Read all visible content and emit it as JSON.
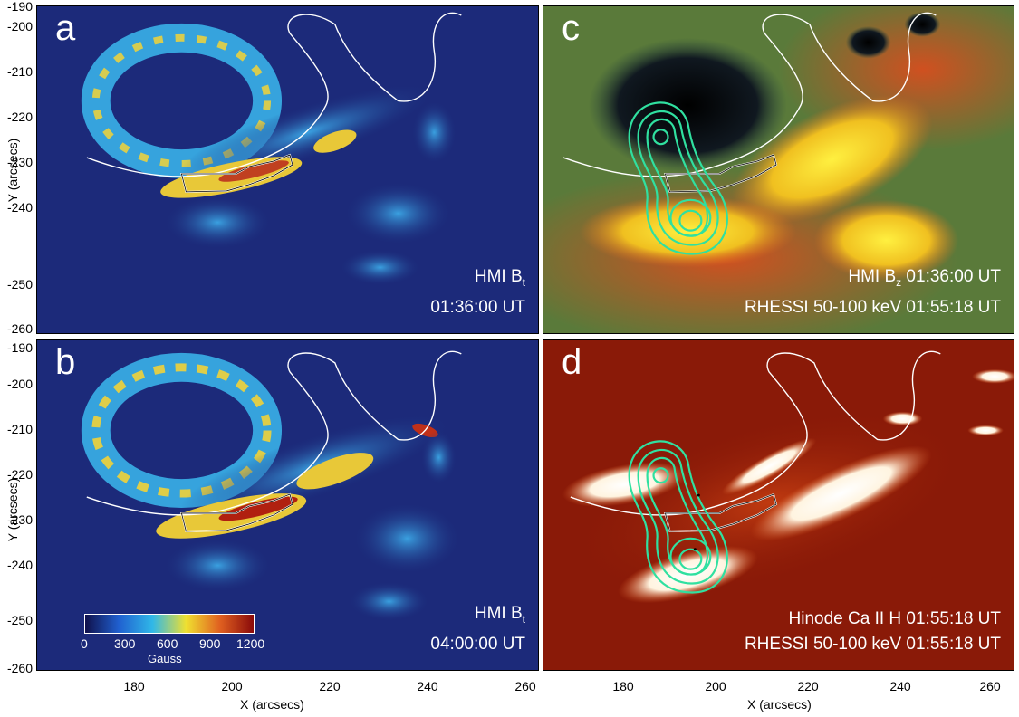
{
  "panels": {
    "a": {
      "label": "a",
      "line1": "HMI B",
      "line1_sub": "t",
      "line2": "01:36:00 UT"
    },
    "b": {
      "label": "b",
      "line1": "HMI B",
      "line1_sub": "t",
      "line2": "04:00:00 UT"
    },
    "c": {
      "label": "c",
      "line1": "HMI B",
      "line1_sub": "z",
      "line1_after": " 01:36:00 UT",
      "line2": "RHESSI 50-100 keV 01:55:18 UT"
    },
    "d": {
      "label": "d",
      "line1": "Hinode Ca II H 01:55:18 UT",
      "line2": "RHESSI 50-100 keV 01:55:18 UT"
    }
  },
  "axes": {
    "x_label": "X (arcsecs)",
    "y_label": "Y (arcsecs)",
    "x_ticks": [
      "180",
      "200",
      "220",
      "240",
      "260"
    ],
    "y_ticks": [
      "-190",
      "-200",
      "-210",
      "-220",
      "-230",
      "-240",
      "-250",
      "-260"
    ],
    "x_range": [
      164,
      266
    ],
    "y_range": [
      -261,
      -189
    ]
  },
  "colorbar": {
    "title": "Gauss",
    "ticks": [
      "0",
      "300",
      "600",
      "900",
      "1200"
    ],
    "range": [
      0,
      1200
    ],
    "colors": [
      "#10104a",
      "#2060d0",
      "#30b8e8",
      "#f0e030",
      "#e06020",
      "#8a0a0a"
    ]
  },
  "colors": {
    "bt_background": "#1c2a7a",
    "bz_background": "#5a7a3a",
    "ca_background": "#8a1a08",
    "contour": "#30e0a0",
    "outline": "#ffffff"
  }
}
